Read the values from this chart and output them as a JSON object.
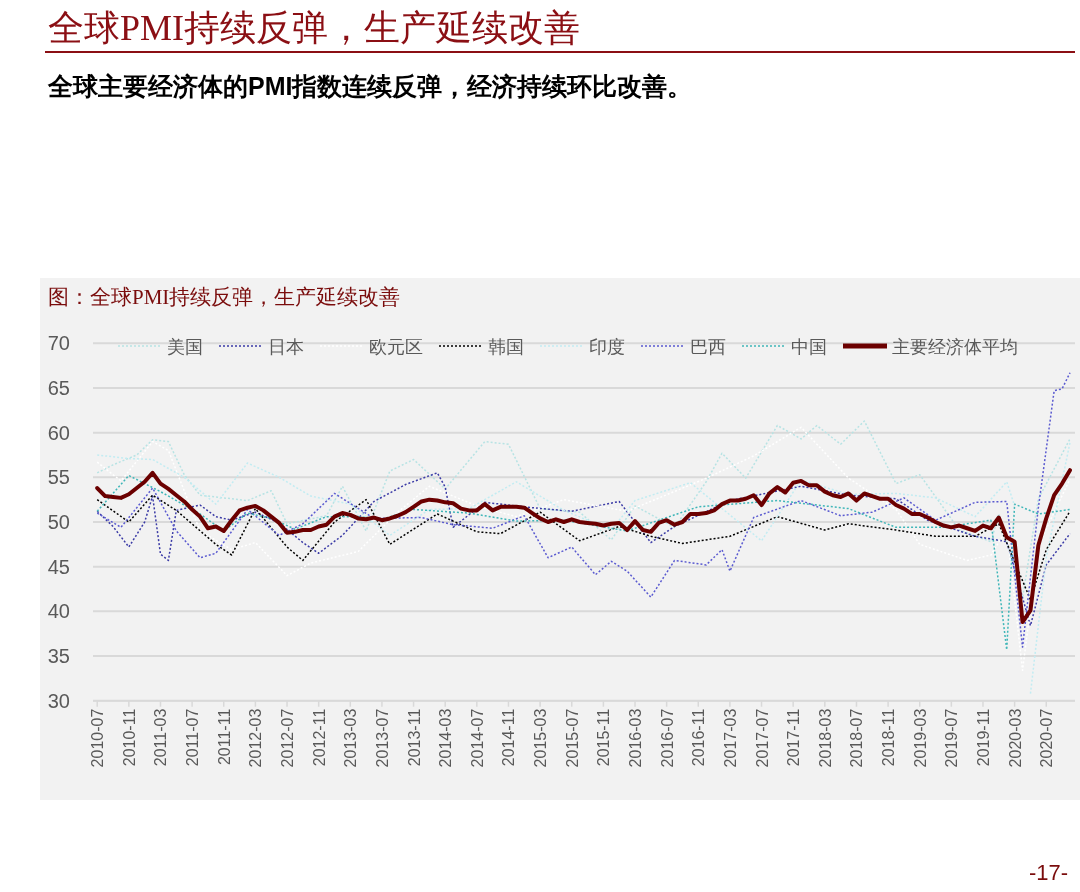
{
  "chart_data": {
    "type": "line",
    "title": "全球PMI持续反弹，生产延续改善",
    "subtitle": "全球主要经济体的PMI指数连续反弹，经济持续环比改善。",
    "annotations": [
      "图：全球PMI持续反弹，生产延续改善",
      "-17-"
    ],
    "xlim": [
      "2010-06-15",
      "2020-10-20"
    ],
    "ylim": [
      30,
      70
    ],
    "yticks": [
      30,
      35,
      40,
      45,
      50,
      55,
      60,
      65,
      70
    ],
    "xticks": [
      "2010-07",
      "2010-11",
      "2011-03",
      "2011-07",
      "2011-11",
      "2012-03",
      "2012-07",
      "2012-11",
      "2013-03",
      "2013-07",
      "2013-11",
      "2014-03",
      "2014-07",
      "2014-11",
      "2015-03",
      "2015-07",
      "2015-11",
      "2016-03",
      "2016-07",
      "2016-11",
      "2017-03",
      "2017-07",
      "2017-11",
      "2018-03",
      "2018-07",
      "2018-11",
      "2019-03",
      "2019-07",
      "2019-11",
      "2020-03",
      "2020-07"
    ],
    "grid": "y",
    "legend": "top",
    "series": [
      {
        "name": "美国",
        "color": "#b7e3e4",
        "line_style": "dotted",
        "x": [
          "2010-07",
          "2010-09",
          "2010-12",
          "2011-02",
          "2011-04",
          "2011-06",
          "2011-08",
          "2011-11",
          "2012-02",
          "2012-05",
          "2012-07",
          "2012-12",
          "2013-02",
          "2013-05",
          "2013-08",
          "2013-11",
          "2014-03",
          "2014-08",
          "2014-11",
          "2015-03",
          "2015-08",
          "2015-12",
          "2016-03",
          "2016-08",
          "2016-12",
          "2017-02",
          "2017-05",
          "2017-09",
          "2017-12",
          "2018-02",
          "2018-05",
          "2018-08",
          "2018-12",
          "2019-03",
          "2019-08",
          "2019-12",
          "2020-01",
          "2020-04",
          "2020-06",
          "2020-10"
        ],
        "values": [
          55.5,
          56.4,
          57.5,
          59.2,
          59,
          55.3,
          53,
          52.7,
          52.4,
          53.5,
          49.8,
          50.7,
          54,
          49,
          55.7,
          57,
          53.7,
          59,
          58.7,
          51.5,
          51.1,
          48,
          51.8,
          49.4,
          54.5,
          57.7,
          54.9,
          60.8,
          59.3,
          60.8,
          58.7,
          61.3,
          54.3,
          55.3,
          49.1,
          47.8,
          50.9,
          41.5,
          52.6,
          59.3
        ]
      },
      {
        "name": "日本",
        "color": "#3b3ba6",
        "line_style": "dotted",
        "x": [
          "2010-07",
          "2010-09",
          "2010-11",
          "2011-01",
          "2011-02",
          "2011-03",
          "2011-04",
          "2011-05",
          "2011-08",
          "2011-10",
          "2011-12",
          "2012-03",
          "2012-06",
          "2012-09",
          "2012-11",
          "2013-02",
          "2013-06",
          "2013-10",
          "2014-02",
          "2014-03",
          "2014-04",
          "2014-08",
          "2015-02",
          "2015-07",
          "2016-01",
          "2016-05",
          "2016-08",
          "2017-03",
          "2017-12",
          "2018-06",
          "2018-12",
          "2019-04",
          "2019-10",
          "2020-02",
          "2020-05",
          "2020-07",
          "2020-10"
        ],
        "values": [
          51.2,
          49.5,
          47.2,
          50,
          52.9,
          46.4,
          45.7,
          51.3,
          51.9,
          50.6,
          50.2,
          51.1,
          49.9,
          47.7,
          46.5,
          48.5,
          52.3,
          54.2,
          55.5,
          53.9,
          49.4,
          52.2,
          51.6,
          51.2,
          52.3,
          47.7,
          49.5,
          52.4,
          54,
          53,
          52.6,
          50.2,
          48.4,
          47.8,
          38.4,
          45.2,
          48.7
        ]
      },
      {
        "name": "欧元区",
        "color": "#ffffff",
        "line_style": "dotted",
        "x": [
          "2010-07",
          "2010-10",
          "2011-02",
          "2011-04",
          "2011-08",
          "2011-12",
          "2012-03",
          "2012-07",
          "2012-10",
          "2013-04",
          "2013-09",
          "2014-01",
          "2014-07",
          "2014-12",
          "2015-06",
          "2016-02",
          "2016-12",
          "2017-06",
          "2017-12",
          "2018-06",
          "2018-12",
          "2019-03",
          "2019-09",
          "2019-12",
          "2020-02",
          "2020-04",
          "2020-06",
          "2020-10"
        ],
        "values": [
          56.7,
          54.6,
          59,
          58,
          49,
          46.9,
          47.7,
          44,
          45.4,
          46.7,
          51.1,
          54,
          51.8,
          50.6,
          52.5,
          51.2,
          54.9,
          57.4,
          60.6,
          54.9,
          51.4,
          47.5,
          45.7,
          46.3,
          49.2,
          33.4,
          47.4,
          54.8
        ]
      },
      {
        "name": "韩国",
        "color": "#000000",
        "line_style": "dotted",
        "x": [
          "2010-07",
          "2010-11",
          "2011-02",
          "2011-05",
          "2011-10",
          "2011-12",
          "2012-03",
          "2012-07",
          "2012-09",
          "2013-01",
          "2013-05",
          "2013-08",
          "2014-02",
          "2014-07",
          "2014-10",
          "2015-03",
          "2015-08",
          "2016-01",
          "2016-05",
          "2016-09",
          "2017-03",
          "2017-09",
          "2018-03",
          "2018-06",
          "2018-12",
          "2019-05",
          "2019-10",
          "2020-01",
          "2020-05",
          "2020-07",
          "2020-10"
        ],
        "values": [
          52.5,
          50,
          53,
          51.3,
          47.5,
          46.3,
          51.5,
          47.2,
          45.7,
          50,
          52.5,
          47.5,
          50.9,
          48.9,
          48.7,
          51.1,
          47.9,
          49.5,
          48.4,
          47.6,
          48.4,
          50.6,
          49.1,
          49.8,
          49.1,
          48.4,
          48.4,
          49.8,
          41.3,
          46.9,
          51.2
        ]
      },
      {
        "name": "印度",
        "color": "#c2ecf2",
        "line_style": "dotted",
        "x": [
          "2010-07",
          "2010-11",
          "2011-02",
          "2011-06",
          "2011-10",
          "2012-02",
          "2012-06",
          "2012-10",
          "2013-03",
          "2013-08",
          "2014-01",
          "2014-06",
          "2014-12",
          "2015-06",
          "2015-12",
          "2016-03",
          "2016-10",
          "2017-07",
          "2017-12",
          "2018-06",
          "2018-12",
          "2019-05",
          "2019-10",
          "2020-02",
          "2020-03",
          "2020-04",
          "2020-05",
          "2020-07",
          "2020-10"
        ],
        "values": [
          57.5,
          57.1,
          57,
          55,
          52,
          56.6,
          55,
          52.9,
          52,
          48.5,
          51.4,
          51.5,
          54.5,
          51.3,
          49.1,
          52.4,
          54.4,
          47.9,
          54.7,
          53.1,
          53.2,
          52.7,
          50.6,
          54.5,
          51.8,
          null,
          30.8,
          46,
          58.9
        ]
      },
      {
        "name": "巴西",
        "color": "#5a5ad0",
        "line_style": "dotted",
        "x": [
          "2010-07",
          "2010-10",
          "2011-02",
          "2011-05",
          "2011-08",
          "2011-10",
          "2012-02",
          "2012-06",
          "2012-09",
          "2013-01",
          "2013-06",
          "2013-12",
          "2014-04",
          "2014-09",
          "2015-01",
          "2015-04",
          "2015-07",
          "2015-10",
          "2015-12",
          "2016-02",
          "2016-05",
          "2016-08",
          "2016-12",
          "2017-02",
          "2017-03",
          "2017-06",
          "2017-12",
          "2018-05",
          "2018-09",
          "2019-01",
          "2019-05",
          "2019-10",
          "2020-02",
          "2020-04",
          "2020-06",
          "2020-08",
          "2020-09",
          "2020-10"
        ],
        "values": [
          51,
          49.4,
          53.8,
          49,
          46,
          46.5,
          51.4,
          48.5,
          49.8,
          53.2,
          50.4,
          50.5,
          49.7,
          49.3,
          50.7,
          46,
          47.2,
          44.1,
          45.6,
          44.5,
          41.6,
          45.7,
          45.2,
          46.9,
          44.5,
          50.5,
          52.4,
          50.7,
          51.1,
          52.7,
          50.2,
          52.2,
          52.3,
          36,
          51.6,
          64.7,
          64.9,
          66.7
        ]
      },
      {
        "name": "中国",
        "color": "#3fb6b8",
        "line_style": "dotted",
        "x": [
          "2010-07",
          "2010-11",
          "2011-03",
          "2011-08",
          "2011-11",
          "2012-02",
          "2012-05",
          "2012-08",
          "2012-12",
          "2013-04",
          "2013-07",
          "2013-11",
          "2014-06",
          "2014-12",
          "2015-06",
          "2016-02",
          "2016-11",
          "2017-09",
          "2018-06",
          "2018-12",
          "2019-06",
          "2019-12",
          "2020-02",
          "2020-03",
          "2020-06",
          "2020-10"
        ],
        "values": [
          51.2,
          55.2,
          53.4,
          50.9,
          49,
          51,
          50.4,
          49.2,
          50.6,
          50.6,
          50.3,
          51.4,
          51,
          50.1,
          50.2,
          49,
          51.7,
          52.4,
          51.5,
          49.4,
          49.4,
          50.2,
          35.7,
          52,
          50.9,
          51.4
        ]
      },
      {
        "name": "主要经济体平均",
        "color": "#6b0000",
        "line_style": "solid",
        "x": [
          "2010-07",
          "2010-08",
          "2010-09",
          "2010-10",
          "2010-11",
          "2010-12",
          "2011-01",
          "2011-02",
          "2011-03",
          "2011-04",
          "2011-05",
          "2011-06",
          "2011-07",
          "2011-08",
          "2011-09",
          "2011-10",
          "2011-11",
          "2011-12",
          "2012-01",
          "2012-02",
          "2012-03",
          "2012-04",
          "2012-05",
          "2012-06",
          "2012-07",
          "2012-08",
          "2012-09",
          "2012-10",
          "2012-11",
          "2012-12",
          "2013-01",
          "2013-02",
          "2013-03",
          "2013-04",
          "2013-05",
          "2013-06",
          "2013-07",
          "2013-08",
          "2013-09",
          "2013-10",
          "2013-11",
          "2013-12",
          "2014-01",
          "2014-02",
          "2014-03",
          "2014-04",
          "2014-05",
          "2014-06",
          "2014-07",
          "2014-08",
          "2014-09",
          "2014-10",
          "2014-11",
          "2014-12",
          "2015-01",
          "2015-02",
          "2015-03",
          "2015-04",
          "2015-05",
          "2015-06",
          "2015-07",
          "2015-08",
          "2015-09",
          "2015-10",
          "2015-11",
          "2015-12",
          "2016-01",
          "2016-02",
          "2016-03",
          "2016-04",
          "2016-05",
          "2016-06",
          "2016-07",
          "2016-08",
          "2016-09",
          "2016-10",
          "2016-11",
          "2016-12",
          "2017-01",
          "2017-02",
          "2017-03",
          "2017-04",
          "2017-05",
          "2017-06",
          "2017-07",
          "2017-08",
          "2017-09",
          "2017-10",
          "2017-11",
          "2017-12",
          "2018-01",
          "2018-02",
          "2018-03",
          "2018-04",
          "2018-05",
          "2018-06",
          "2018-07",
          "2018-08",
          "2018-09",
          "2018-10",
          "2018-11",
          "2018-12",
          "2019-01",
          "2019-02",
          "2019-03",
          "2019-04",
          "2019-05",
          "2019-06",
          "2019-07",
          "2019-08",
          "2019-09",
          "2019-10",
          "2019-11",
          "2019-12",
          "2020-01",
          "2020-02",
          "2020-03",
          "2020-04",
          "2020-05",
          "2020-06",
          "2020-07",
          "2020-08",
          "2020-09",
          "2020-10"
        ],
        "values": [
          53.8,
          52.9,
          52.8,
          52.7,
          53.1,
          53.8,
          54.5,
          55.5,
          54.3,
          53.7,
          53.0,
          52.3,
          51.4,
          50.6,
          49.3,
          49.5,
          49.0,
          50.2,
          51.3,
          51.6,
          51.8,
          51.3,
          50.6,
          49.9,
          48.8,
          48.9,
          49.1,
          49.1,
          49.5,
          49.7,
          50.6,
          51.0,
          50.8,
          50.4,
          50.3,
          50.5,
          50.2,
          50.4,
          50.7,
          51.1,
          51.7,
          52.3,
          52.5,
          52.4,
          52.2,
          52.1,
          51.5,
          51.3,
          51.3,
          52.0,
          51.3,
          51.7,
          51.7,
          51.7,
          51.6,
          51.0,
          50.4,
          50.0,
          50.3,
          50.0,
          50.3,
          50.0,
          49.9,
          49.8,
          49.6,
          49.8,
          49.9,
          49.1,
          50.1,
          49.1,
          48.9,
          49.9,
          50.2,
          49.7,
          50.0,
          50.9,
          50.9,
          51.0,
          51.3,
          52.0,
          52.4,
          52.4,
          52.6,
          53.0,
          51.9,
          53.2,
          53.9,
          53.3,
          54.4,
          54.6,
          54.1,
          54.1,
          53.4,
          53.0,
          52.8,
          53.2,
          52.4,
          53.2,
          52.9,
          52.6,
          52.6,
          51.9,
          51.5,
          50.9,
          50.9,
          50.5,
          50.0,
          49.6,
          49.4,
          49.6,
          49.3,
          49.0,
          49.6,
          49.3,
          50.5,
          48.3,
          47.8,
          38.8,
          40.1,
          47.4,
          50.4,
          53.0,
          54.3,
          55.8
        ]
      }
    ]
  }
}
